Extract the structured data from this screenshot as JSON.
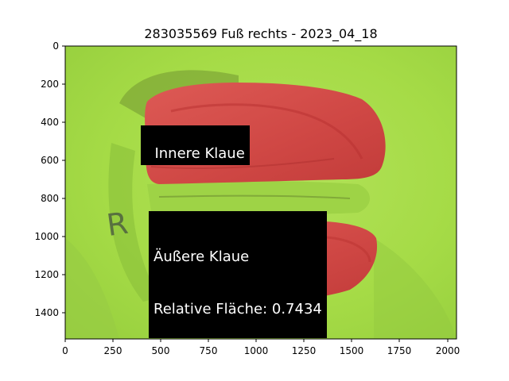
{
  "title": "283035569 Fuß rechts - 2023_04_18",
  "labels": {
    "inner": "Innere Klaue",
    "outer_line1": "Äußere Klaue",
    "outer_line2": "Relative Fläche: 0.7434"
  },
  "axes": {
    "x_ticks": [
      "0",
      "250",
      "500",
      "750",
      "1000",
      "1250",
      "1500",
      "1750",
      "2000"
    ],
    "y_ticks": [
      "0",
      "200",
      "400",
      "600",
      "800",
      "1000",
      "1200",
      "1400"
    ]
  },
  "colors": {
    "background_green": "#a7dc4c",
    "mask_red": "#d6504c",
    "label_bg": "#000000",
    "label_text": "#ffffff"
  }
}
